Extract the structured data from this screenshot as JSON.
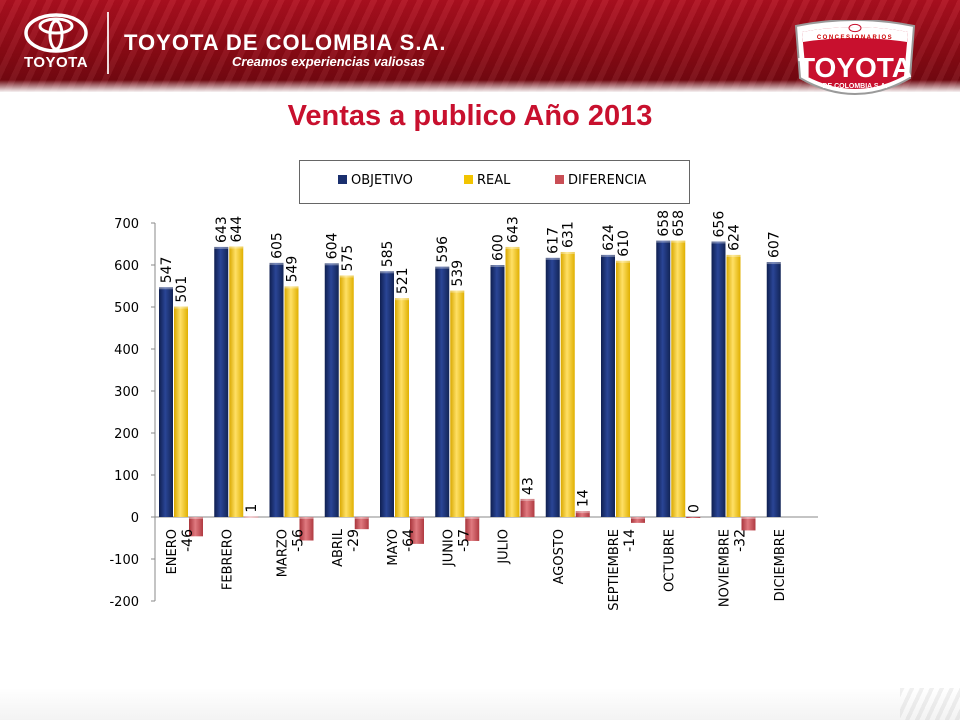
{
  "header": {
    "brand_left": "TOYOTA",
    "company": "TOYOTA DE COLOMBIA S.A.",
    "slogan": "Creamos experiencias valiosas",
    "badge_top": "CONCESIONARIOS",
    "badge_main": "TOYOTA",
    "badge_sub": "DE COLOMBIA S.A."
  },
  "page_title": "Ventas a publico Año 2013",
  "colors": {
    "header": "#9a0c18",
    "title": "#c8102e",
    "objetivo": "#1a2f6e",
    "real": "#f2c400",
    "diferencia": "#c94e55"
  },
  "chart_data": {
    "type": "bar",
    "title": "",
    "xlabel": "",
    "ylabel": "",
    "ylim": [
      -200,
      700
    ],
    "yticks": [
      -200,
      -100,
      0,
      100,
      200,
      300,
      400,
      500,
      600,
      700
    ],
    "grid": false,
    "legend_position": "top",
    "categories": [
      "ENERO",
      "FEBRERO",
      "MARZO",
      "ABRIL",
      "MAYO",
      "JUNIO",
      "JULIO",
      "AGOSTO",
      "SEPTIEMBRE",
      "OCTUBRE",
      "NOVIEMBRE",
      "DICIEMBRE"
    ],
    "category_diff_labels": [
      "-46",
      "",
      "-56",
      "-29",
      "-64",
      "-57",
      "",
      "",
      "-14",
      "",
      "-32",
      ""
    ],
    "series": [
      {
        "name": "OBJETIVO",
        "values": [
          547,
          643,
          605,
          604,
          585,
          596,
          600,
          617,
          624,
          658,
          656,
          607
        ],
        "labels": [
          "547",
          "643",
          "605",
          "604",
          "585",
          "596",
          "600",
          "617",
          "624",
          "658",
          "656",
          "607"
        ]
      },
      {
        "name": "REAL",
        "values": [
          501,
          644,
          549,
          575,
          521,
          539,
          643,
          631,
          610,
          658,
          624,
          null
        ],
        "labels": [
          "501",
          "644",
          "549",
          "575",
          "521",
          "539",
          "643",
          "631",
          "610",
          "658",
          "624",
          ""
        ]
      },
      {
        "name": "DIFERENCIA",
        "values": [
          -46,
          1,
          -56,
          -29,
          -64,
          -57,
          43,
          14,
          -14,
          0,
          -32,
          null
        ],
        "labels": [
          "",
          "1",
          "",
          "",
          "",
          "",
          "43",
          "14",
          "",
          "0",
          "",
          ""
        ]
      }
    ]
  }
}
